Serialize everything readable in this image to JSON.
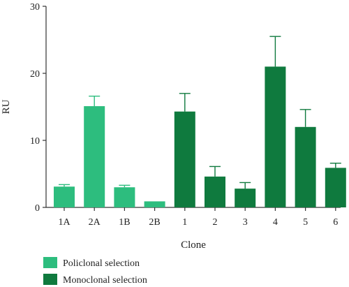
{
  "chart_data": {
    "type": "bar",
    "title": "",
    "xlabel": "Clone",
    "ylabel": "RU",
    "ylim": [
      0,
      30
    ],
    "yticks": [
      0,
      10,
      20,
      30
    ],
    "grid": false,
    "legend_position": "bottom-left",
    "categories": [
      "1A",
      "2A",
      "1B",
      "2B",
      "1",
      "2",
      "3",
      "4",
      "5",
      "6"
    ],
    "values": [
      3.1,
      15.1,
      3.0,
      0.9,
      14.3,
      4.6,
      2.8,
      21.0,
      12.0,
      5.9
    ],
    "errors": [
      0.3,
      1.5,
      0.3,
      0.0,
      2.7,
      1.5,
      0.9,
      4.5,
      2.6,
      0.7
    ],
    "groups": [
      "Policlonal selection",
      "Policlonal selection",
      "Policlonal selection",
      "Policlonal selection",
      "Monoclonal selection",
      "Monoclonal selection",
      "Monoclonal selection",
      "Monoclonal selection",
      "Monoclonal selection",
      "Monoclonal selection"
    ],
    "series": [
      {
        "name": "Policlonal selection",
        "color": "#2dbd7e"
      },
      {
        "name": "Monoclonal selection",
        "color": "#0f7a3e"
      }
    ]
  }
}
